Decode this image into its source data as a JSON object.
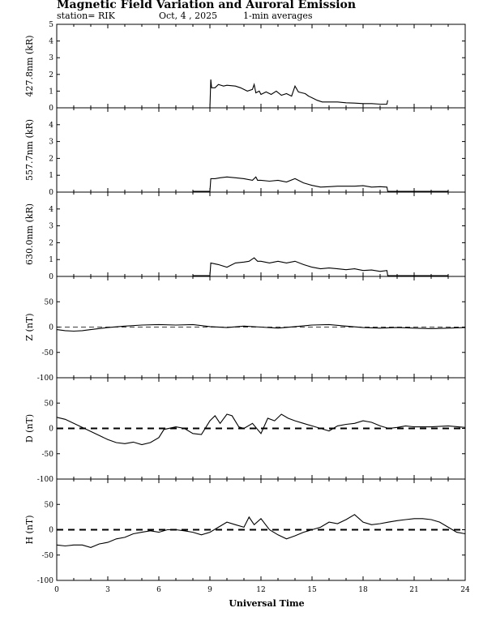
{
  "header": {
    "title": "Magnetic Field Variation and Auroral Emission",
    "station": "station= RIK",
    "date": "Oct, 4  , 2025",
    "averaging": "1-min averages"
  },
  "chart_data": [
    {
      "type": "line",
      "id": "p4278",
      "ylabel": "427.8nm (kR)",
      "ylim": [
        0,
        5
      ],
      "yticks": [
        "0",
        "1",
        "2",
        "3",
        "4",
        "5"
      ],
      "zero_line": false,
      "xlim": [
        0,
        24
      ],
      "x": [
        9.0,
        9.05,
        9.1,
        9.3,
        9.5,
        9.8,
        10.0,
        10.5,
        10.8,
        11.2,
        11.5,
        11.6,
        11.7,
        11.9,
        12.0,
        12.3,
        12.6,
        12.9,
        13.2,
        13.5,
        13.8,
        14.0,
        14.2,
        14.4,
        14.6,
        14.8,
        15.0,
        15.3,
        15.6,
        16.0,
        16.5,
        17.0,
        17.5,
        18.0,
        18.5,
        19.0,
        19.4,
        19.45
      ],
      "values": [
        0.0,
        1.7,
        1.2,
        1.2,
        1.4,
        1.3,
        1.35,
        1.3,
        1.2,
        1.0,
        1.1,
        1.4,
        0.9,
        1.0,
        0.8,
        0.95,
        0.8,
        1.0,
        0.75,
        0.85,
        0.7,
        1.3,
        0.95,
        0.9,
        0.85,
        0.7,
        0.6,
        0.45,
        0.35,
        0.35,
        0.35,
        0.3,
        0.28,
        0.25,
        0.25,
        0.22,
        0.22,
        0.45
      ]
    },
    {
      "type": "line",
      "id": "p5577",
      "ylabel": "557.7nm (kR)",
      "ylim": [
        0,
        5
      ],
      "yticks": [
        "0",
        "1",
        "2",
        "3",
        "4"
      ],
      "zero_line": false,
      "xlim": [
        0,
        24
      ],
      "x": [
        8.0,
        9.0,
        9.05,
        9.3,
        9.6,
        10.0,
        10.5,
        11.0,
        11.5,
        11.7,
        11.8,
        12.0,
        12.5,
        13.0,
        13.5,
        14.0,
        14.5,
        15.0,
        15.5,
        16.0,
        16.5,
        17.0,
        17.5,
        18.0,
        18.5,
        19.0,
        19.4,
        19.45,
        20.0,
        22.0,
        23.0
      ],
      "values": [
        0.05,
        0.05,
        0.8,
        0.8,
        0.85,
        0.9,
        0.85,
        0.8,
        0.7,
        0.9,
        0.7,
        0.7,
        0.65,
        0.7,
        0.6,
        0.8,
        0.55,
        0.4,
        0.3,
        0.32,
        0.35,
        0.35,
        0.35,
        0.38,
        0.3,
        0.32,
        0.3,
        0.05,
        0.05,
        0.05,
        0.05
      ]
    },
    {
      "type": "line",
      "id": "p6300",
      "ylabel": "630.0nm (kR)",
      "ylim": [
        0,
        5
      ],
      "yticks": [
        "0",
        "1",
        "2",
        "3",
        "4"
      ],
      "zero_line": false,
      "xlim": [
        0,
        24
      ],
      "x": [
        8.0,
        9.0,
        9.05,
        9.5,
        10.0,
        10.5,
        11.0,
        11.3,
        11.6,
        11.8,
        12.0,
        12.5,
        13.0,
        13.5,
        14.0,
        14.5,
        15.0,
        15.5,
        16.0,
        16.5,
        17.0,
        17.5,
        18.0,
        18.5,
        19.0,
        19.4,
        19.45,
        20.0,
        22.0,
        23.0
      ],
      "values": [
        0.05,
        0.05,
        0.8,
        0.7,
        0.55,
        0.8,
        0.85,
        0.9,
        1.1,
        0.9,
        0.9,
        0.8,
        0.9,
        0.8,
        0.9,
        0.7,
        0.55,
        0.45,
        0.5,
        0.45,
        0.4,
        0.45,
        0.35,
        0.38,
        0.3,
        0.35,
        0.05,
        0.05,
        0.05,
        0.05
      ]
    },
    {
      "type": "line",
      "id": "pz",
      "ylabel": "Z (nT)",
      "ylim": [
        -100,
        100
      ],
      "yticks": [
        "50",
        "0",
        "-50",
        "-100"
      ],
      "zero_line": true,
      "zero_line_style": "thin",
      "xlim": [
        0,
        24
      ],
      "x": [
        0,
        0.5,
        1.0,
        1.5,
        2.0,
        3.0,
        4.0,
        5.0,
        6.0,
        7.0,
        8.0,
        9.0,
        10.0,
        11.0,
        12.0,
        13.0,
        14.0,
        15.0,
        16.0,
        17.0,
        18.0,
        19.0,
        20.0,
        21.0,
        22.0,
        23.0,
        24.0
      ],
      "values": [
        -5,
        -7,
        -8,
        -7,
        -5,
        -1,
        2,
        4,
        5,
        4,
        5,
        1,
        -1,
        2,
        0,
        -2,
        1,
        4,
        5,
        2,
        -1,
        -2,
        -1,
        -2,
        -3,
        -2,
        -1
      ]
    },
    {
      "type": "line",
      "id": "pd",
      "ylabel": "D (nT)",
      "ylim": [
        -100,
        100
      ],
      "yticks": [
        "50",
        "0",
        "-50",
        "-100"
      ],
      "zero_line": true,
      "zero_line_style": "dashed",
      "xlim": [
        0,
        24
      ],
      "x": [
        0,
        0.5,
        1.0,
        1.5,
        2.0,
        2.5,
        3.0,
        3.5,
        4.0,
        4.5,
        5.0,
        5.5,
        6.0,
        6.3,
        7.0,
        7.5,
        8.0,
        8.5,
        9.0,
        9.3,
        9.6,
        10.0,
        10.3,
        10.7,
        11.0,
        11.5,
        12.0,
        12.4,
        12.8,
        13.2,
        13.6,
        14.0,
        14.5,
        15.0,
        15.5,
        16.0,
        16.5,
        17.0,
        17.5,
        18.0,
        18.5,
        19.0,
        19.5,
        20.0,
        20.5,
        21.0,
        22.0,
        23.0,
        24.0
      ],
      "values": [
        22,
        18,
        10,
        2,
        -6,
        -14,
        -22,
        -28,
        -30,
        -27,
        -32,
        -28,
        -18,
        -2,
        3,
        0,
        -10,
        -12,
        15,
        25,
        10,
        28,
        25,
        3,
        0,
        10,
        -10,
        20,
        15,
        28,
        20,
        15,
        10,
        5,
        0,
        -5,
        5,
        8,
        10,
        15,
        12,
        5,
        0,
        2,
        5,
        3,
        3,
        5,
        2
      ]
    },
    {
      "type": "line",
      "id": "ph",
      "ylabel": "H (nT)",
      "ylim": [
        -100,
        100
      ],
      "yticks": [
        "50",
        "0",
        "-50",
        "-100"
      ],
      "zero_line": true,
      "zero_line_style": "dashed",
      "xlim": [
        0,
        24
      ],
      "x": [
        0,
        0.5,
        1.0,
        1.5,
        2.0,
        2.5,
        3.0,
        3.5,
        4.0,
        4.5,
        5.0,
        5.5,
        6.0,
        6.5,
        7.0,
        7.5,
        8.0,
        8.5,
        9.0,
        9.5,
        10.0,
        10.5,
        11.0,
        11.3,
        11.6,
        12.0,
        12.5,
        13.0,
        13.5,
        14.0,
        14.5,
        15.0,
        15.5,
        16.0,
        16.5,
        17.0,
        17.5,
        18.0,
        18.5,
        19.0,
        19.5,
        20.0,
        20.5,
        21.0,
        21.5,
        22.0,
        22.5,
        23.0,
        23.5,
        24.0
      ],
      "values": [
        -30,
        -32,
        -30,
        -30,
        -35,
        -28,
        -25,
        -18,
        -15,
        -8,
        -5,
        -2,
        -5,
        0,
        0,
        -2,
        -5,
        -10,
        -5,
        5,
        15,
        10,
        5,
        25,
        10,
        22,
        0,
        -10,
        -18,
        -12,
        -5,
        0,
        5,
        15,
        12,
        20,
        30,
        15,
        10,
        12,
        15,
        18,
        20,
        22,
        22,
        20,
        15,
        5,
        -5,
        -8
      ]
    }
  ],
  "xaxis": {
    "label": "Universal Time",
    "ticks": [
      "0",
      "3",
      "6",
      "9",
      "12",
      "15",
      "18",
      "21",
      "24"
    ]
  }
}
